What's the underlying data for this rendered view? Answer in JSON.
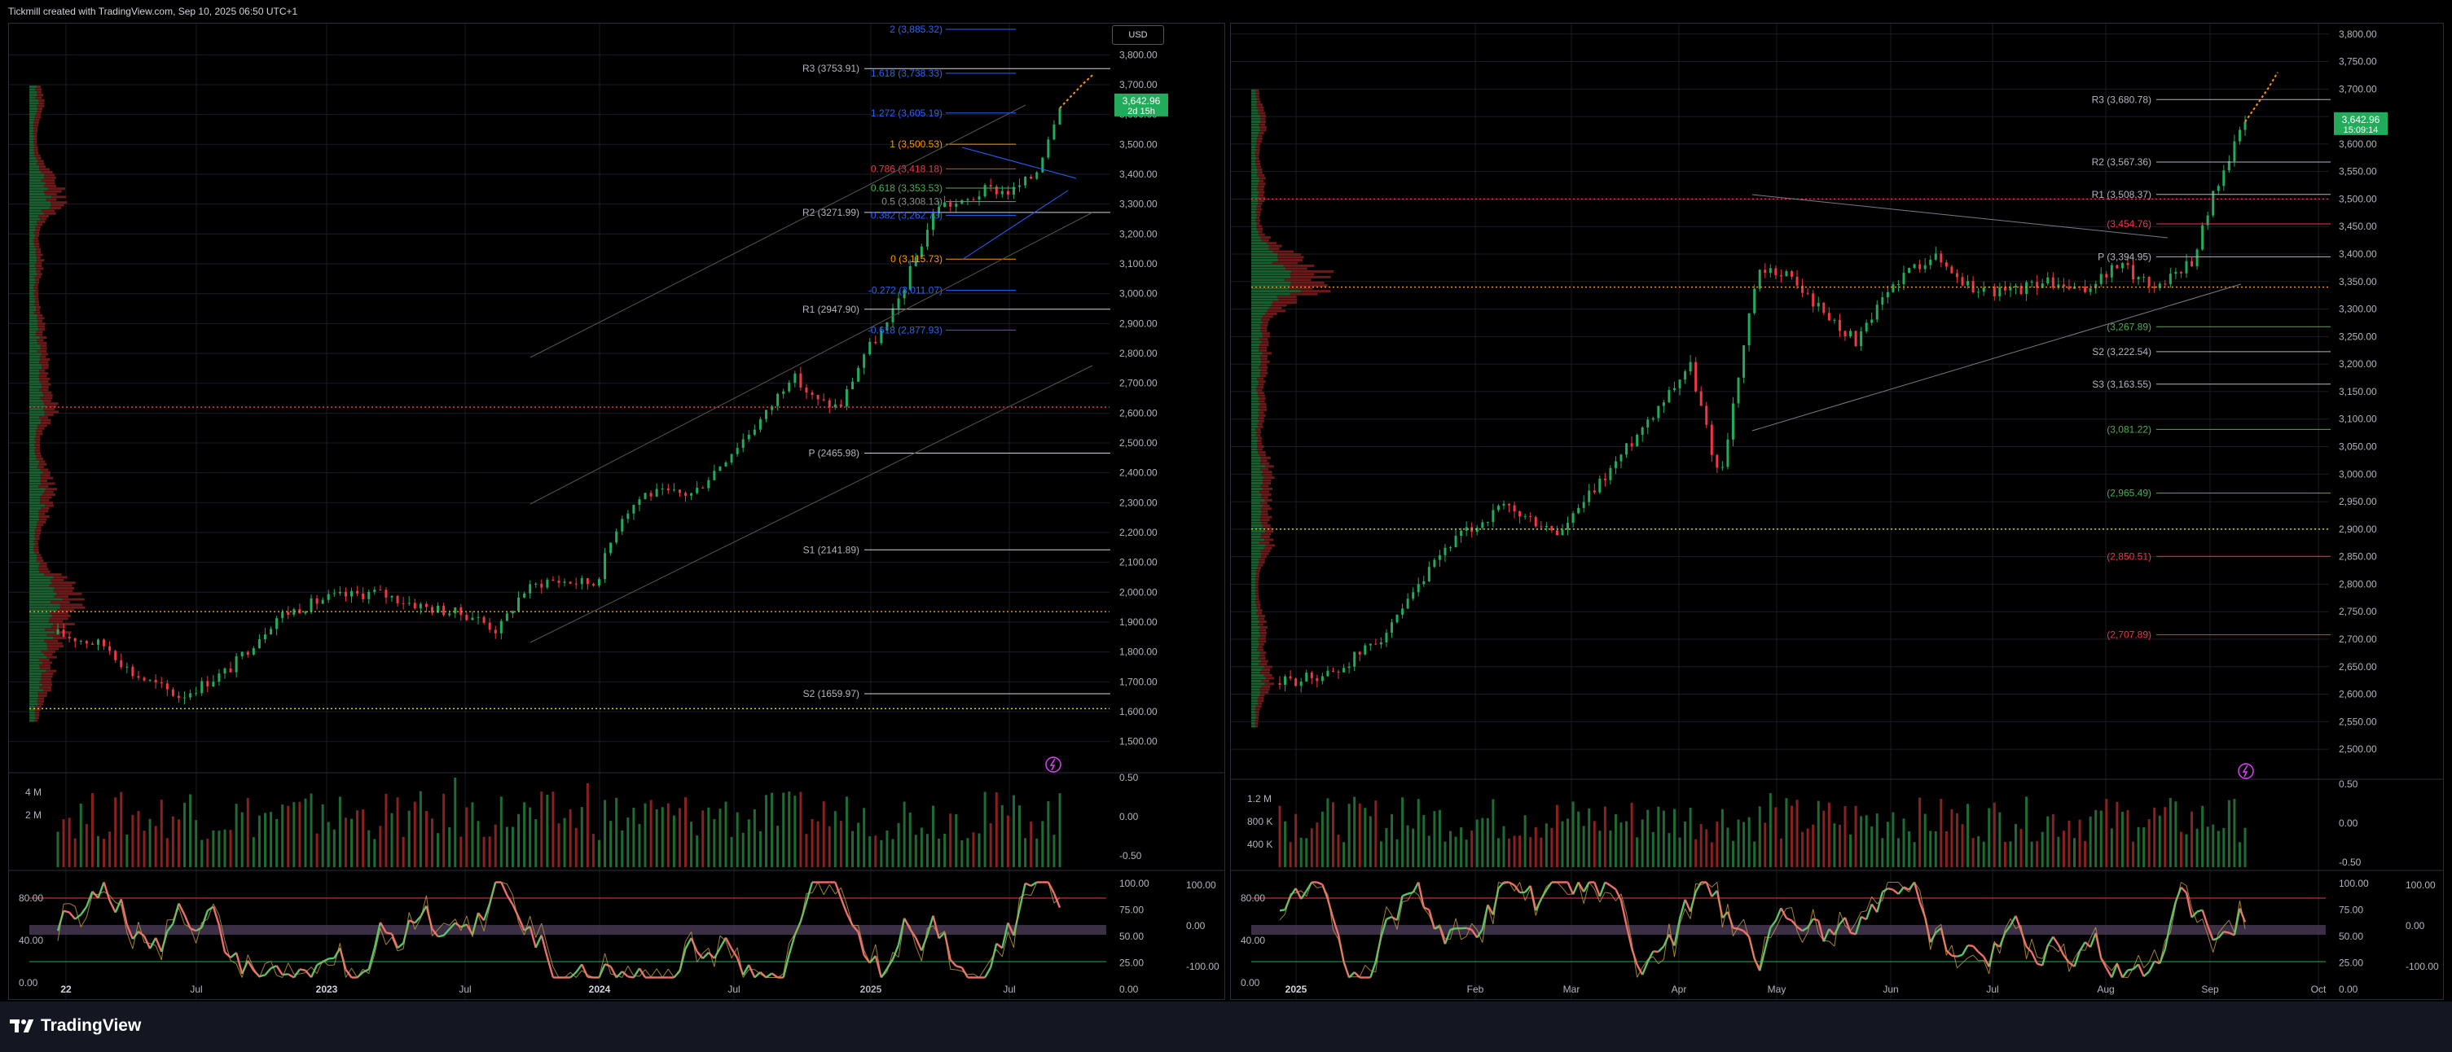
{
  "header": {
    "caption": "Tickmill created with TradingView.com, Sep 10, 2025 06:50 UTC+1"
  },
  "footer": {
    "brand": "TradingView"
  },
  "colors": {
    "up": "#22ab5a",
    "down": "#f23645",
    "fib": "#2962ff",
    "grid": "#1a1d26",
    "accent_orange": "#ff9800"
  },
  "chart_data": [
    {
      "type": "candlestick",
      "title": "",
      "currency": "USD",
      "ylim": [
        1450,
        3850
      ],
      "y_ticks": [
        "3,800.00",
        "3,700.00",
        "3,600.00",
        "3,500.00",
        "3,400.00",
        "3,300.00",
        "3,200.00",
        "3,100.00",
        "3,000.00",
        "2,900.00",
        "2,800.00",
        "2,700.00",
        "2,600.00",
        "2,500.00",
        "2,400.00",
        "2,300.00",
        "2,200.00",
        "2,100.00",
        "2,000.00",
        "1,900.00",
        "1,800.00",
        "1,700.00",
        "1,600.00",
        "1,500.00"
      ],
      "x_ticks": [
        "22",
        "Jul",
        "2023",
        "Jul",
        "2024",
        "Jul",
        "2025",
        "Jul"
      ],
      "last_price": "3,642.96",
      "countdown": "2d 15h",
      "close_path": [
        [
          "2022-04",
          1860
        ],
        [
          "2022-06",
          1820
        ],
        [
          "2022-07",
          1730
        ],
        [
          "2022-09",
          1650
        ],
        [
          "2022-11",
          1740
        ],
        [
          "2023-01",
          1920
        ],
        [
          "2023-03",
          1980
        ],
        [
          "2023-05",
          2000
        ],
        [
          "2023-07",
          1950
        ],
        [
          "2023-09",
          1920
        ],
        [
          "2023-10",
          1870
        ],
        [
          "2023-11",
          2000
        ],
        [
          "2023-12",
          2040
        ],
        [
          "2024-02",
          2030
        ],
        [
          "2024-03",
          2250
        ],
        [
          "2024-04",
          2330
        ],
        [
          "2024-06",
          2330
        ],
        [
          "2024-07",
          2420
        ],
        [
          "2024-09",
          2600
        ],
        [
          "2024-10",
          2730
        ],
        [
          "2024-11",
          2640
        ],
        [
          "2024-12",
          2620
        ],
        [
          "2025-01",
          2800
        ],
        [
          "2025-02",
          2900
        ],
        [
          "2025-03",
          3100
        ],
        [
          "2025-04",
          3300
        ],
        [
          "2025-05",
          3300
        ],
        [
          "2025-06",
          3350
        ],
        [
          "2025-07",
          3340
        ],
        [
          "2025-08",
          3400
        ],
        [
          "2025-09",
          3640
        ]
      ],
      "pivots": [
        {
          "label": "R3 (3753.91)",
          "value": 3753.91
        },
        {
          "label": "R2 (3271.99)",
          "value": 3271.99
        },
        {
          "label": "R1 (2947.90)",
          "value": 2947.9
        },
        {
          "label": "P (2465.98)",
          "value": 2465.98
        },
        {
          "label": "S1 (2141.89)",
          "value": 2141.89
        },
        {
          "label": "S2 (1659.97)",
          "value": 1659.97
        }
      ],
      "fib_levels": [
        {
          "label": "2 (3,885.32)",
          "value": 3885.32,
          "color": "#2962ff"
        },
        {
          "label": "1.618 (3,738.33)",
          "value": 3738.33,
          "color": "#2962ff"
        },
        {
          "label": "1.272 (3,605.19)",
          "value": 3605.19,
          "color": "#2962ff"
        },
        {
          "label": "1 (3,500.53)",
          "value": 3500.53,
          "color": "#ff9800"
        },
        {
          "label": "0.786 (3,418.18)",
          "value": 3418.18,
          "color": "#f23645"
        },
        {
          "label": "0.618 (3,353.53)",
          "value": 3353.53,
          "color": "#4caf50"
        },
        {
          "label": "0.5 (3,308.13)",
          "value": 3308.13,
          "color": "#8c8c8c"
        },
        {
          "label": "0.382 (3,262.73)",
          "value": 3262.73,
          "color": "#2962ff"
        },
        {
          "label": "0 (3,115.73)",
          "value": 3115.73,
          "color": "#ff9800"
        },
        {
          "label": "-0.272 (3,011.07)",
          "value": 3011.07,
          "color": "#2962ff"
        },
        {
          "label": "-0.618 (2,877.93)",
          "value": 2877.93,
          "color": "#2962ff"
        }
      ],
      "dotted_levels": [
        2620,
        1935,
        1610
      ],
      "volume": {
        "axis_labels": [
          "4 M",
          "2 M"
        ],
        "right_labels": [
          "0.50",
          "0.00",
          "-0.50"
        ]
      },
      "stochastic": {
        "left_labels": [
          "80.00",
          "40.00",
          "0.00"
        ],
        "right_labels": [
          "100.00",
          "75.00",
          "50.00",
          "25.00",
          "0.00"
        ],
        "right2_labels": [
          "100.00",
          "0.00",
          "-100.00"
        ]
      }
    },
    {
      "type": "candlestick",
      "title": "",
      "ylim": [
        2475,
        3810
      ],
      "y_ticks": [
        "3,800.00",
        "3,750.00",
        "3,700.00",
        "3,650.00",
        "3,600.00",
        "3,550.00",
        "3,500.00",
        "3,450.00",
        "3,400.00",
        "3,350.00",
        "3,300.00",
        "3,250.00",
        "3,200.00",
        "3,150.00",
        "3,100.00",
        "3,050.00",
        "3,000.00",
        "2,950.00",
        "2,900.00",
        "2,850.00",
        "2,800.00",
        "2,750.00",
        "2,700.00",
        "2,650.00",
        "2,600.00",
        "2,550.00",
        "2,500.00"
      ],
      "x_ticks": [
        "2025",
        "Feb",
        "Mar",
        "Apr",
        "May",
        "Jun",
        "Jul",
        "Aug",
        "Sep",
        "Oct"
      ],
      "last_price": "3,642.96",
      "countdown": "15:09:14",
      "close_path": [
        [
          "2024-12-20",
          2620
        ],
        [
          "2025-01-05",
          2640
        ],
        [
          "2025-01-20",
          2720
        ],
        [
          "2025-02-05",
          2870
        ],
        [
          "2025-02-20",
          2940
        ],
        [
          "2025-03-05",
          2890
        ],
        [
          "2025-03-20",
          3020
        ],
        [
          "2025-04-01",
          3120
        ],
        [
          "2025-04-10",
          3200
        ],
        [
          "2025-04-18",
          2990
        ],
        [
          "2025-04-28",
          3360
        ],
        [
          "2025-05-05",
          3370
        ],
        [
          "2025-05-15",
          3300
        ],
        [
          "2025-05-25",
          3240
        ],
        [
          "2025-06-05",
          3350
        ],
        [
          "2025-06-15",
          3400
        ],
        [
          "2025-06-25",
          3340
        ],
        [
          "2025-07-05",
          3330
        ],
        [
          "2025-07-15",
          3350
        ],
        [
          "2025-07-25",
          3330
        ],
        [
          "2025-08-05",
          3380
        ],
        [
          "2025-08-15",
          3340
        ],
        [
          "2025-08-25",
          3390
        ],
        [
          "2025-09-01",
          3520
        ],
        [
          "2025-09-09",
          3640
        ]
      ],
      "pivots": [
        {
          "label": "R3 (3,680.78)",
          "value": 3680.78,
          "color": "#b2b5be"
        },
        {
          "label": "R2 (3,567.36)",
          "value": 3567.36,
          "color": "#b2b5be"
        },
        {
          "label": "R1 (3,508.37)",
          "value": 3508.37,
          "color": "#b2b5be"
        },
        {
          "label": "(3,454.76)",
          "value": 3454.76,
          "color": "#f23645"
        },
        {
          "label": "P (3,394.95)",
          "value": 3394.95,
          "color": "#b2b5be"
        },
        {
          "label": "(3,267.89)",
          "value": 3267.89,
          "color": "#4caf50"
        },
        {
          "label": "S2 (3,222.54)",
          "value": 3222.54,
          "color": "#b2b5be"
        },
        {
          "label": "S3 (3,163.55)",
          "value": 3163.55,
          "color": "#b2b5be"
        },
        {
          "label": "(3,081.22)",
          "value": 3081.22,
          "color": "#4caf50"
        },
        {
          "label": "(2,965.49)",
          "value": 2965.49,
          "color": "#4caf50"
        },
        {
          "label": "(2,850.51)",
          "value": 2850.51,
          "color": "#f23645"
        },
        {
          "label": "(2,707.89)",
          "value": 2707.89,
          "color": "#f23645"
        }
      ],
      "dotted_levels": [
        3500,
        3340,
        2900
      ],
      "volume": {
        "axis_labels": [
          "1.2 M",
          "800 K",
          "400 K"
        ],
        "right_labels": [
          "0.50",
          "0.00",
          "-0.50"
        ]
      },
      "stochastic": {
        "left_labels": [
          "80.00",
          "40.00",
          "0.00"
        ],
        "right_labels": [
          "100.00",
          "75.00",
          "50.00",
          "25.00",
          "0.00"
        ],
        "right2_labels": [
          "100.00",
          "0.00",
          "-100.00"
        ]
      }
    }
  ]
}
